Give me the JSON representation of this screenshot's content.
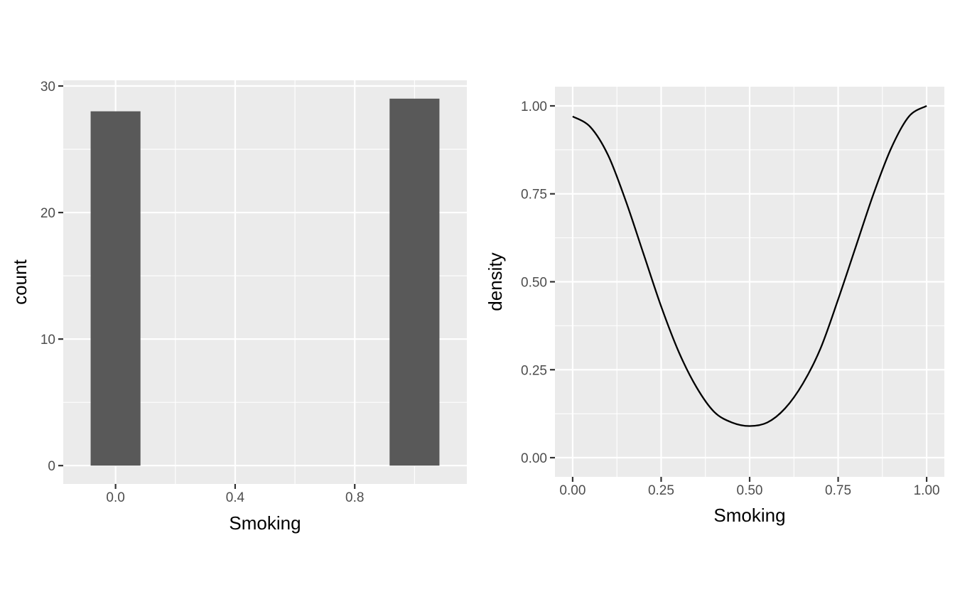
{
  "chart_data": [
    {
      "type": "bar",
      "subtype": "histogram",
      "xlabel": "Smoking",
      "ylabel": "count",
      "x": [
        0,
        1
      ],
      "values": [
        28,
        29
      ],
      "bin_width": 0.1667,
      "xlim": [
        -0.175,
        1.175
      ],
      "ylim": [
        -1.45,
        30.45
      ],
      "x_ticks": [
        0,
        0.4,
        0.8
      ],
      "x_tick_labels": [
        "0.0",
        "0.4",
        "0.8"
      ],
      "x_minor": [
        0.2,
        0.6,
        1.0
      ],
      "y_ticks": [
        0,
        10,
        20,
        30
      ],
      "y_tick_labels": [
        "0",
        "10",
        "20",
        "30"
      ],
      "y_minor": [
        5,
        15,
        25
      ],
      "grid": true,
      "bar_color": "#595959",
      "panel_color": "#ebebeb"
    },
    {
      "type": "line",
      "subtype": "density",
      "xlabel": "Smoking",
      "ylabel": "density",
      "x": [
        0,
        0.05,
        0.1,
        0.15,
        0.2,
        0.25,
        0.3,
        0.35,
        0.4,
        0.45,
        0.5,
        0.55,
        0.6,
        0.65,
        0.7,
        0.75,
        0.8,
        0.85,
        0.9,
        0.95,
        1
      ],
      "y": [
        0.97,
        0.94,
        0.86,
        0.73,
        0.58,
        0.43,
        0.3,
        0.2,
        0.13,
        0.1,
        0.09,
        0.1,
        0.14,
        0.21,
        0.31,
        0.45,
        0.6,
        0.75,
        0.88,
        0.97,
        1.0
      ],
      "xlim": [
        -0.05,
        1.05
      ],
      "ylim": [
        -0.0545,
        1.0545
      ],
      "x_ticks": [
        0,
        0.25,
        0.5,
        0.75,
        1
      ],
      "x_tick_labels": [
        "0.00",
        "0.25",
        "0.50",
        "0.75",
        "1.00"
      ],
      "x_minor": [
        0.125,
        0.375,
        0.625,
        0.875
      ],
      "y_ticks": [
        0,
        0.25,
        0.5,
        0.75,
        1
      ],
      "y_tick_labels": [
        "0.00",
        "0.25",
        "0.50",
        "0.75",
        "1.00"
      ],
      "y_minor": [
        0.125,
        0.375,
        0.625,
        0.875
      ],
      "grid": true,
      "line_color": "#000000",
      "panel_color": "#ebebeb"
    }
  ]
}
